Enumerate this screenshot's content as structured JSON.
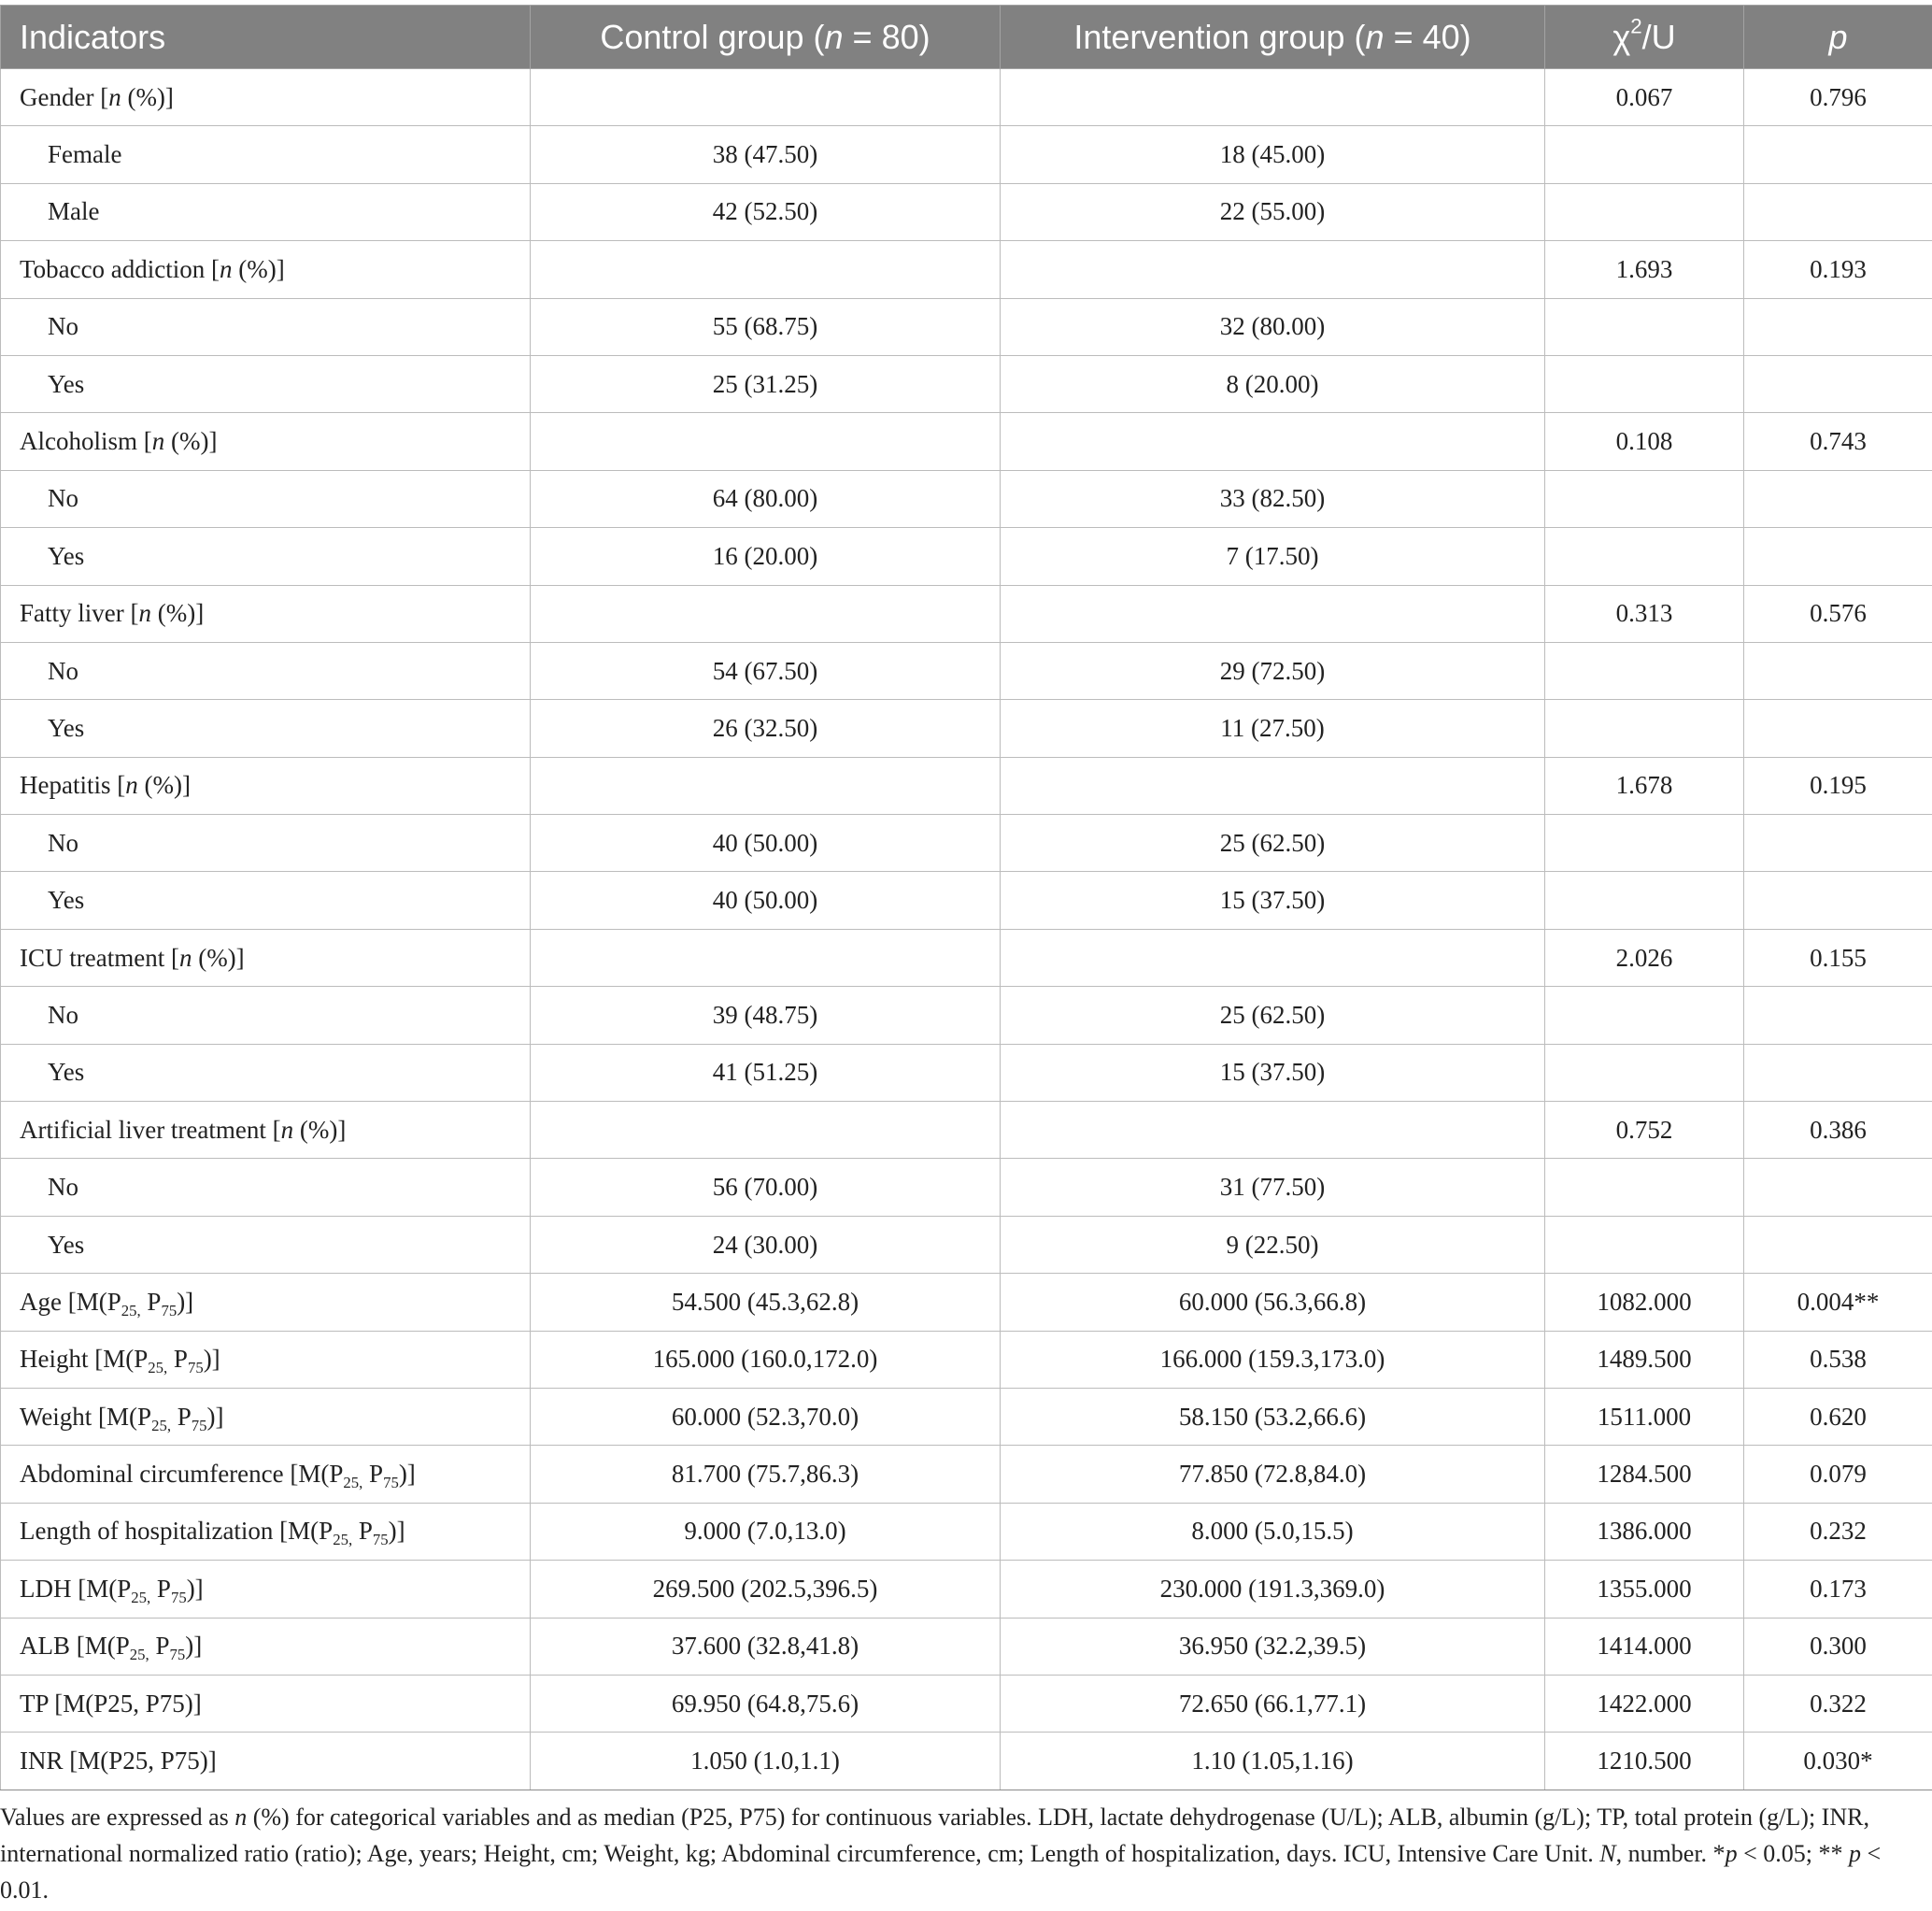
{
  "header": {
    "indicators": "Indicators",
    "control_pre": "Control group (",
    "control_n": "n",
    "control_post": " = 80)",
    "intervention_pre": "Intervention group (",
    "intervention_n": "n",
    "intervention_post": " = 40)",
    "stat_chi": "χ",
    "stat_sup": "2",
    "stat_post": "/U",
    "p": "p"
  },
  "rows": [
    {
      "type": "cat",
      "pre": "Gender [",
      "n": "n",
      "post": " (%)]",
      "stat": "0.067",
      "p": "0.796"
    },
    {
      "type": "sub",
      "label": "Female",
      "control": "38 (47.50)",
      "intervention": "18 (45.00)"
    },
    {
      "type": "sub",
      "label": "Male",
      "control": "42 (52.50)",
      "intervention": "22 (55.00)"
    },
    {
      "type": "cat",
      "pre": "Tobacco addiction [",
      "n": "n",
      "post": " (%)]",
      "stat": "1.693",
      "p": "0.193"
    },
    {
      "type": "sub",
      "label": "No",
      "control": "55 (68.75)",
      "intervention": "32 (80.00)"
    },
    {
      "type": "sub",
      "label": "Yes",
      "control": "25 (31.25)",
      "intervention": "8 (20.00)"
    },
    {
      "type": "cat",
      "pre": "Alcoholism [",
      "n": "n",
      "post": " (%)]",
      "stat": "0.108",
      "p": "0.743"
    },
    {
      "type": "sub",
      "label": "No",
      "control": "64 (80.00)",
      "intervention": "33 (82.50)"
    },
    {
      "type": "sub",
      "label": "Yes",
      "control": "16 (20.00)",
      "intervention": "7 (17.50)"
    },
    {
      "type": "cat",
      "pre": "Fatty liver [",
      "n": "n",
      "post": " (%)]",
      "stat": "0.313",
      "p": "0.576"
    },
    {
      "type": "sub",
      "label": "No",
      "control": "54 (67.50)",
      "intervention": "29 (72.50)"
    },
    {
      "type": "sub",
      "label": "Yes",
      "control": "26 (32.50)",
      "intervention": "11 (27.50)"
    },
    {
      "type": "cat",
      "pre": "Hepatitis [",
      "n": "n",
      "post": " (%)]",
      "stat": "1.678",
      "p": "0.195"
    },
    {
      "type": "sub",
      "label": "No",
      "control": "40 (50.00)",
      "intervention": "25 (62.50)"
    },
    {
      "type": "sub",
      "label": "Yes",
      "control": "40 (50.00)",
      "intervention": "15 (37.50)"
    },
    {
      "type": "cat",
      "pre": "ICU treatment [",
      "n": "n",
      "post": " (%)]",
      "stat": "2.026",
      "p": "0.155"
    },
    {
      "type": "sub",
      "label": "No",
      "control": "39 (48.75)",
      "intervention": "25 (62.50)"
    },
    {
      "type": "sub",
      "label": "Yes",
      "control": "41 (51.25)",
      "intervention": "15 (37.50)"
    },
    {
      "type": "cat",
      "pre": "Artificial liver treatment [",
      "n": "n",
      "post": " (%)]",
      "stat": "0.752",
      "p": "0.386"
    },
    {
      "type": "sub",
      "label": "No",
      "control": "56 (70.00)",
      "intervention": "31 (77.50)"
    },
    {
      "type": "sub",
      "label": "Yes",
      "control": "24 (30.00)",
      "intervention": "9 (22.50)"
    },
    {
      "type": "cont",
      "pre": "Age [M(P",
      "s1": "25,",
      "mid": " P",
      "s2": "75",
      "post": ")]",
      "control": "54.500 (45.3,62.8)",
      "intervention": "60.000 (56.3,66.8)",
      "stat": "1082.000",
      "p": "0.004**"
    },
    {
      "type": "cont",
      "pre": "Height [M(P",
      "s1": "25,",
      "mid": " P",
      "s2": "75",
      "post": ")]",
      "control": "165.000 (160.0,172.0)",
      "intervention": "166.000 (159.3,173.0)",
      "stat": "1489.500",
      "p": "0.538"
    },
    {
      "type": "cont",
      "pre": "Weight [M(P",
      "s1": "25,",
      "mid": " P",
      "s2": "75",
      "post": ")]",
      "control": "60.000 (52.3,70.0)",
      "intervention": "58.150 (53.2,66.6)",
      "stat": "1511.000",
      "p": "0.620"
    },
    {
      "type": "cont",
      "pre": "Abdominal circumference [M(P",
      "s1": "25,",
      "mid": " P",
      "s2": "75",
      "post": ")]",
      "control": "81.700 (75.7,86.3)",
      "intervention": "77.850 (72.8,84.0)",
      "stat": "1284.500",
      "p": "0.079"
    },
    {
      "type": "cont",
      "pre": "Length of hospitalization [M(P",
      "s1": "25,",
      "mid": " P",
      "s2": "75",
      "post": ")]",
      "control": "9.000 (7.0,13.0)",
      "intervention": "8.000 (5.0,15.5)",
      "stat": "1386.000",
      "p": "0.232"
    },
    {
      "type": "cont",
      "pre": "LDH [M(P",
      "s1": "25,",
      "mid": " P",
      "s2": "75",
      "post": ")]",
      "control": "269.500 (202.5,396.5)",
      "intervention": "230.000 (191.3,369.0)",
      "stat": "1355.000",
      "p": "0.173"
    },
    {
      "type": "cont",
      "pre": "ALB [M(P",
      "s1": "25,",
      "mid": " P",
      "s2": "75",
      "post": ")]",
      "control": "37.600 (32.8,41.8)",
      "intervention": "36.950 (32.2,39.5)",
      "stat": "1414.000",
      "p": "0.300"
    },
    {
      "type": "plain",
      "label": "TP [M(P25, P75)]",
      "control": "69.950 (64.8,75.6)",
      "intervention": "72.650 (66.1,77.1)",
      "stat": "1422.000",
      "p": "0.322"
    },
    {
      "type": "plain",
      "label": "INR [M(P25, P75)]",
      "control": "1.050 (1.0,1.1)",
      "intervention": "1.10 (1.05,1.16)",
      "stat": "1210.500",
      "p": "0.030*"
    }
  ],
  "footnote": {
    "t1": "Values are expressed as ",
    "i1": "n",
    "t2": " (%) for categorical variables and as median (P25, P75) for continuous variables. LDH, lactate dehydrogenase (U/L); ALB, albumin (g/L); TP, total protein (g/L); INR, international normalized ratio (ratio); Age, years; Height, cm; Weight, kg; Abdominal circumference, cm; Length of hospitalization, days. ICU, Intensive Care Unit. ",
    "i2": "N",
    "t3": ", number. *",
    "i3": "p",
    "t4": " < 0.05; ** ",
    "i4": "p",
    "t5": " < 0.01."
  }
}
